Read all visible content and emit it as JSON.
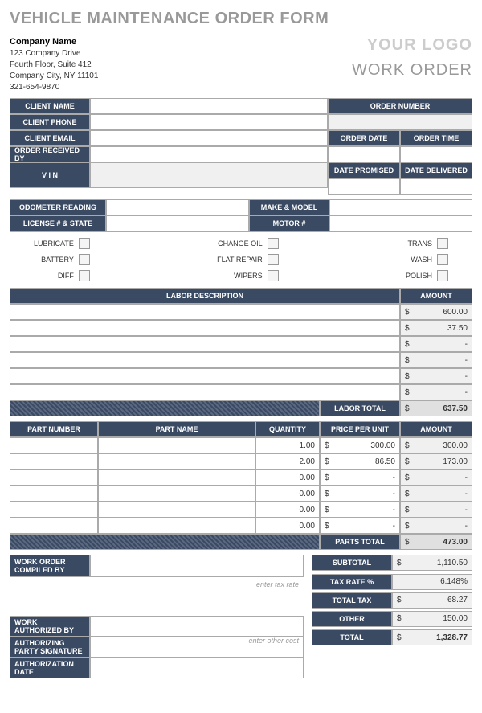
{
  "title": "VEHICLE MAINTENANCE ORDER FORM",
  "company": {
    "name": "Company Name",
    "addr1": "123 Company Drive",
    "addr2": "Fourth Floor, Suite 412",
    "city": "Company City, NY 11101",
    "phone": "321-654-9870"
  },
  "logo": "YOUR LOGO",
  "workOrderLabel": "WORK ORDER",
  "headers": {
    "clientName": "CLIENT NAME",
    "clientPhone": "CLIENT PHONE",
    "clientEmail": "CLIENT EMAIL",
    "orderReceivedBy": "ORDER RECEIVED BY",
    "vin": "V I N",
    "orderNumber": "ORDER NUMBER",
    "orderDate": "ORDER DATE",
    "orderTime": "ORDER TIME",
    "datePromised": "DATE PROMISED",
    "dateDelivered": "DATE DELIVERED",
    "odometer": "ODOMETER READING",
    "makeModel": "MAKE & MODEL",
    "license": "LICENSE # & STATE",
    "motor": "MOTOR #"
  },
  "checkboxes": {
    "col1": [
      "LUBRICATE",
      "BATTERY",
      "DIFF"
    ],
    "col2": [
      "CHANGE OIL",
      "FLAT REPAIR",
      "WIPERS"
    ],
    "col3": [
      "TRANS",
      "WASH",
      "POLISH"
    ]
  },
  "labor": {
    "header": {
      "desc": "LABOR DESCRIPTION",
      "amount": "AMOUNT"
    },
    "rows": [
      {
        "desc": "",
        "amount": "600.00"
      },
      {
        "desc": "",
        "amount": "37.50"
      },
      {
        "desc": "",
        "amount": "-"
      },
      {
        "desc": "",
        "amount": "-"
      },
      {
        "desc": "",
        "amount": "-"
      },
      {
        "desc": "",
        "amount": "-"
      }
    ],
    "totalLabel": "LABOR TOTAL",
    "totalValue": "637.50"
  },
  "parts": {
    "header": {
      "num": "PART NUMBER",
      "name": "PART NAME",
      "qty": "QUANTITY",
      "price": "PRICE PER UNIT",
      "amount": "AMOUNT"
    },
    "rows": [
      {
        "num": "",
        "name": "",
        "qty": "1.00",
        "price": "300.00",
        "amount": "300.00"
      },
      {
        "num": "",
        "name": "",
        "qty": "2.00",
        "price": "86.50",
        "amount": "173.00"
      },
      {
        "num": "",
        "name": "",
        "qty": "0.00",
        "price": "-",
        "amount": "-"
      },
      {
        "num": "",
        "name": "",
        "qty": "0.00",
        "price": "-",
        "amount": "-"
      },
      {
        "num": "",
        "name": "",
        "qty": "0.00",
        "price": "-",
        "amount": "-"
      },
      {
        "num": "",
        "name": "",
        "qty": "0.00",
        "price": "-",
        "amount": "-"
      }
    ],
    "totalLabel": "PARTS TOTAL",
    "totalValue": "473.00"
  },
  "bottom": {
    "compiledBy": "WORK ORDER COMPILED BY",
    "authorizedBy": "WORK AUTHORIZED BY",
    "signature": "AUTHORIZING PARTY SIGNATURE",
    "authDate": "AUTHORIZATION DATE",
    "hint1": "enter tax rate",
    "hint2": "enter other cost",
    "summary": [
      {
        "label": "SUBTOTAL",
        "value": "1,110.50",
        "sym": "$"
      },
      {
        "label": "TAX RATE %",
        "value": "6.148%",
        "sym": ""
      },
      {
        "label": "TOTAL TAX",
        "value": "68.27",
        "sym": "$"
      },
      {
        "label": "OTHER",
        "value": "150.00",
        "sym": "$"
      },
      {
        "label": "TOTAL",
        "value": "1,328.77",
        "sym": "$",
        "bold": true
      }
    ]
  },
  "currency": "$"
}
